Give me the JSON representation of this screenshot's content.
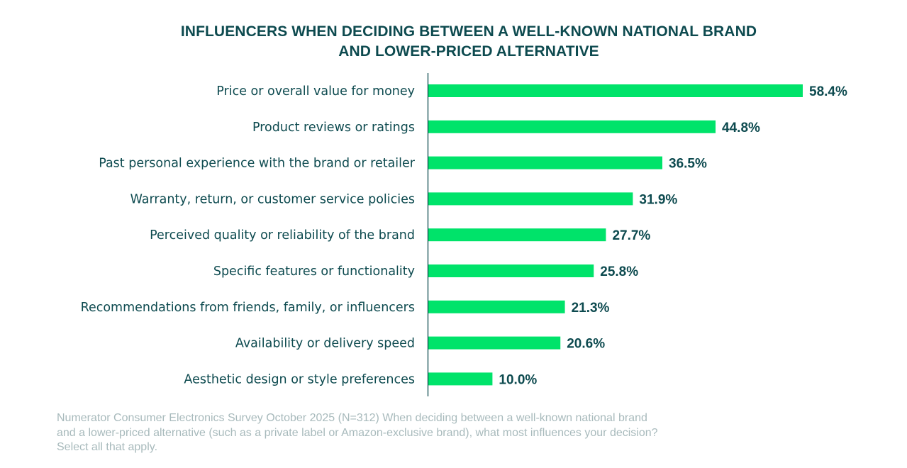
{
  "chart_data": {
    "type": "bar",
    "orientation": "horizontal",
    "title": "INFLUENCERS WHEN DECIDING BETWEEN A WELL-KNOWN NATIONAL BRAND AND LOWER-PRICED ALTERNATIVE",
    "title_lines": [
      "INFLUENCERS WHEN DECIDING BETWEEN A WELL-KNOWN NATIONAL BRAND",
      "AND LOWER-PRICED ALTERNATIVE"
    ],
    "categories": [
      "Price or overall value for money",
      "Product reviews or ratings",
      "Past personal experience with the brand or retailer",
      "Warranty, return, or customer service policies",
      "Perceived quality or reliability of the brand",
      "Specific features or functionality",
      "Recommendations from friends, family, or influencers",
      "Availability or delivery speed",
      "Aesthetic design or style preferences"
    ],
    "values": [
      58.4,
      44.8,
      36.5,
      31.9,
      27.7,
      25.8,
      21.3,
      20.6,
      10.0
    ],
    "value_labels": [
      "58.4%",
      "44.8%",
      "36.5%",
      "31.9%",
      "27.7%",
      "25.8%",
      "21.3%",
      "20.6%",
      "10.0%"
    ],
    "unit": "%",
    "xlabel": "",
    "ylabel": "",
    "xlim": [
      0,
      58.4
    ],
    "grid": false,
    "legend": "none",
    "colors": {
      "bar": "#00e36a",
      "text": "#0d4a4f",
      "axis": "#0d4a4f",
      "footnote": "#a8babc"
    }
  },
  "footnote_lines": [
    "Numerator Consumer Electronics Survey October 2025 (N=312) When deciding between a well-known national brand",
    "and a lower-priced alternative (such as a private label or Amazon-exclusive brand), what most influences your decision?",
    "Select all that apply."
  ]
}
